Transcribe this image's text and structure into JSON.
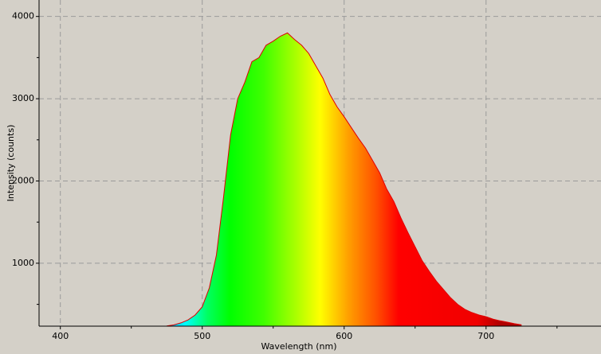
{
  "chart_data": {
    "type": "area",
    "x_label": "Wavelength (nm)",
    "y_label": "Intensity (counts)",
    "x": [
      475,
      480,
      485,
      490,
      495,
      500,
      505,
      510,
      515,
      520,
      525,
      530,
      535,
      540,
      545,
      550,
      555,
      560,
      565,
      570,
      575,
      580,
      585,
      590,
      595,
      600,
      605,
      610,
      615,
      620,
      625,
      630,
      635,
      640,
      645,
      650,
      655,
      660,
      665,
      670,
      675,
      680,
      685,
      690,
      695,
      700,
      705,
      710,
      715,
      720,
      725
    ],
    "values": [
      238,
      250,
      275,
      310,
      370,
      470,
      700,
      1100,
      1800,
      2560,
      3000,
      3200,
      3450,
      3500,
      3650,
      3700,
      3760,
      3800,
      3720,
      3650,
      3550,
      3400,
      3250,
      3050,
      2900,
      2780,
      2650,
      2520,
      2400,
      2250,
      2100,
      1900,
      1750,
      1550,
      1370,
      1200,
      1030,
      900,
      780,
      680,
      580,
      500,
      440,
      400,
      370,
      350,
      320,
      300,
      283,
      265,
      250
    ],
    "color": "#e00000",
    "xlim": [
      385,
      781
    ],
    "ylim": [
      235,
      4200
    ],
    "xticks": [
      400,
      500,
      600,
      700
    ],
    "yticks": [
      1000,
      2000,
      3000,
      4000
    ],
    "xminorticks": [
      450,
      550,
      650,
      750
    ],
    "yminorticks": [
      500,
      1500,
      2500,
      3500
    ],
    "grid": true
  }
}
